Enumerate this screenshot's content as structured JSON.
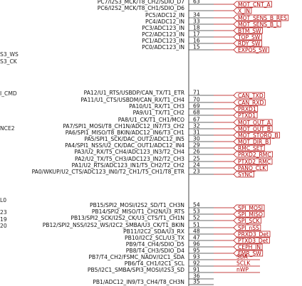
{
  "left_labels": [
    "S3_WS",
    "S3_CK",
    "I_CMD",
    "NCE2",
    "L0",
    "23",
    "19",
    "20"
  ],
  "pins": [
    {
      "name": "PC7/I2S3_MCK/T8_CH2/SDIO_D7",
      "number": "63",
      "net": "MOT_CNT_A"
    },
    {
      "name": "PC6/I2S2_MCK/T8_CH1/SDIO_D6",
      "net": "X_IN"
    },
    {
      "name": "PC5/ADC12_IN",
      "number": "34",
      "net": "MOT_SENS_B_RES"
    },
    {
      "name": "PC4/ADC12_IN",
      "number": "33",
      "net": "MOT_SENS_B_L"
    },
    {
      "name": "PC3/ADC123_IN",
      "number": "18",
      "net": "BTM_SW"
    },
    {
      "name": "PC2/ADC123_IN",
      "number": "17",
      "net": "TOP_SW"
    },
    {
      "name": "PC1/ADC123_IN",
      "number": "16",
      "net": "RDY_SW"
    },
    {
      "name": "PC0/ADC123_IN",
      "number": "15",
      "net": "EXPOS_SW"
    },
    {
      "name": "PA12/U1_RTS/USBDP/CAN_TX/T1_ETR",
      "number": "71",
      "net": "CAN_TXD"
    },
    {
      "name": "PA11/U1_CTS/USBDM/CAN_RX/T1_CH4",
      "number": "70",
      "net": "CAN_RXD"
    },
    {
      "name": "PA10/U1_RX/T1_CH3",
      "number": "69",
      "net": "PRXD1"
    },
    {
      "name": "PA9/U1_TX/T1_CH2",
      "number": "68",
      "net": "PTXD1"
    },
    {
      "name": "PA8/U1_CK/T1_CH1/MCO",
      "number": "67",
      "net": "MOT_OUT_A"
    },
    {
      "name": "PA7/SPI1_MOSI/T8_CH1N/ADC12_IN7/T3_CH2",
      "number": "32",
      "net": "MOT_OUT_B"
    },
    {
      "name": "PA6/SPI1_MISO/T8_BKIN/ADC12_IN6/T3_CH1",
      "number": "31",
      "net": "MOT_STORQ_B"
    },
    {
      "name": "PA5/SPI1_SCK/DAC_OUT2/ADC12_IN5",
      "number": "30",
      "net": "MOT_DIR_B"
    },
    {
      "name": "PA4/SPI1_NSS/U2_CK/DAC_OUT1/ADC12_IN4",
      "number": "29",
      "net": "RMC_SET"
    },
    {
      "name": "PA3/U2_RX/T5_CH4/ADC123_IN3/T2_CH4",
      "number": "26",
      "net": "PRXD2_RMC"
    },
    {
      "name": "PA2/U2_TX/T5_CH3/ADC123_IN2/T2_CH3",
      "number": "25",
      "net": "PTXD2_RMC"
    },
    {
      "name": "PA1/U2_RTS/ADC123_IN1/T5_CH2/T2_CH2",
      "number": "24",
      "net": "PANO_CLK"
    },
    {
      "name": "PA0/WKUP/U2_CTS/ADC123_IN0/T2_CH1/T5_CH1/T8_ETR",
      "number": "23",
      "net": "SYNC"
    },
    {
      "name": "PB15/SPI2_MOSI/I2S2_SD/T1_CH3N",
      "number": "54",
      "net": "SPI_MOSI"
    },
    {
      "name": "PB14/SPI2_MISO/T1_CH2N/U3_RTS",
      "number": "53",
      "net": "SPI_MISO"
    },
    {
      "name": "PB13/SPI2_SCK/I2S2_CK/U3_CTS/T1_CH1N",
      "number": "52",
      "net": "SPI_SCK"
    },
    {
      "name": "PB12/SPI2_NSS/I2S2_WS/I2C2_SMBA/U3_CK/T1_BKIN",
      "number": "51",
      "net": "SPI_nSS"
    },
    {
      "name": "PB11/I2C2_SDA/U3_RX",
      "number": "48",
      "net": "PRXD3_Det"
    },
    {
      "name": "PB10/I2C2_SCL/U3_TX",
      "number": "47",
      "net": "PTXD3_Det"
    },
    {
      "name": "PB9/T4_CH4/SDIO_D5",
      "number": "96",
      "net": "CEPH_IN"
    },
    {
      "name": "PB8/T4_CH3/SDIO_D4",
      "number": "95",
      "net": "EMR_SW"
    },
    {
      "name": "PB7/T4_CH2/FSMC_NADV/I2C1_SDA",
      "number": "93",
      "wire": "SDA"
    },
    {
      "name": "PB6/T4_CH1/I2C1_SCL",
      "number": "92",
      "wire": "SCLK"
    },
    {
      "name": "PB5/I2C1_SMBA/SPI3_MOSI/I2S3_SD",
      "number": "91",
      "wire": "nWP"
    },
    {
      "number": "36"
    },
    {
      "name": "PB1/ADC12_IN9/T3_CH4/T8_CH3N",
      "number": "35"
    }
  ]
}
